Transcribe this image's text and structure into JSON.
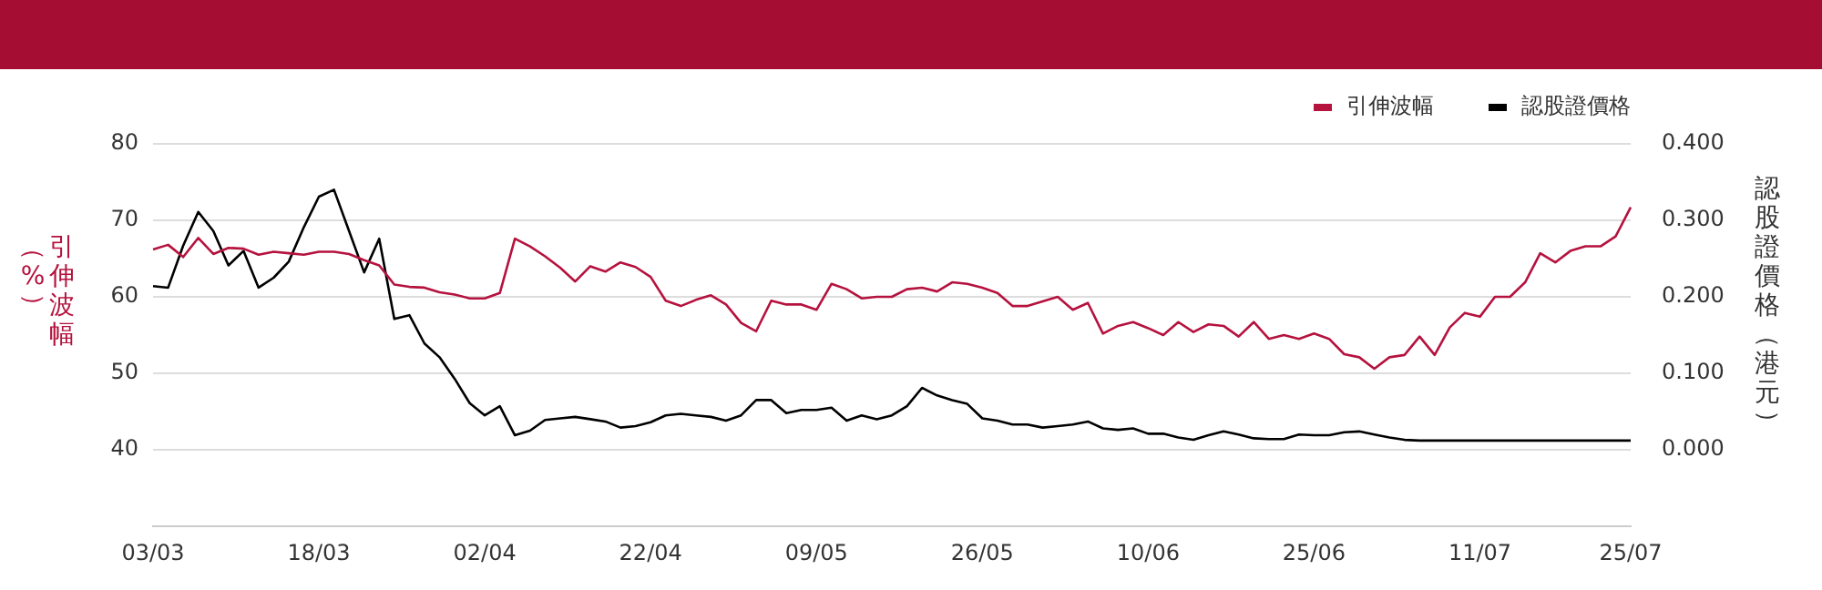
{
  "chart_data": {
    "type": "line",
    "categories": [
      "03/03",
      null,
      null,
      null,
      null,
      null,
      null,
      null,
      null,
      null,
      null,
      "18/03",
      null,
      null,
      null,
      null,
      null,
      null,
      null,
      null,
      null,
      null,
      "02/04",
      null,
      null,
      null,
      null,
      null,
      null,
      null,
      null,
      null,
      null,
      "22/04",
      null,
      null,
      null,
      null,
      null,
      null,
      null,
      null,
      null,
      null,
      "09/05",
      null,
      null,
      null,
      null,
      null,
      null,
      null,
      null,
      null,
      null,
      "26/05",
      null,
      null,
      null,
      null,
      null,
      null,
      null,
      null,
      null,
      null,
      "10/06",
      null,
      null,
      null,
      null,
      null,
      null,
      null,
      null,
      null,
      null,
      "25/06",
      null,
      null,
      null,
      null,
      null,
      null,
      null,
      null,
      null,
      null,
      "11/07",
      null,
      null,
      null,
      null,
      null,
      null,
      null,
      null,
      null,
      "25/07"
    ],
    "series": [
      {
        "name": "引伸波幅",
        "color": "#b5123e",
        "values": [
          66.2,
          66.8,
          65.2,
          67.7,
          65.6,
          66.4,
          66.3,
          65.5,
          65.9,
          65.7,
          65.5,
          65.9,
          65.9,
          65.6,
          64.8,
          64.1,
          61.6,
          61.3,
          61.2,
          60.6,
          60.3,
          59.8,
          59.8,
          60.5,
          67.6,
          66.6,
          65.3,
          63.8,
          62.0,
          64.0,
          63.3,
          64.5,
          63.9,
          62.6,
          59.5,
          58.8,
          59.6,
          60.2,
          59.0,
          56.6,
          55.5,
          59.5,
          59.0,
          59.0,
          58.3,
          61.7,
          61.0,
          59.8,
          60.0,
          60.0,
          61.0,
          61.2,
          60.7,
          61.9,
          61.7,
          61.2,
          60.5,
          58.8,
          58.8,
          59.4,
          60.0,
          58.3,
          59.2,
          55.2,
          56.2,
          56.7,
          55.9,
          55.0,
          56.7,
          55.4,
          56.4,
          56.2,
          54.8,
          56.7,
          54.5,
          55.0,
          54.5,
          55.2,
          54.5,
          52.5,
          52.1,
          50.6,
          52.1,
          52.4,
          54.8,
          52.4,
          56.0,
          57.9,
          57.4,
          60.0,
          60.0,
          61.9,
          65.7,
          64.5,
          66.0,
          66.6,
          66.6,
          67.9,
          71.7
        ]
      },
      {
        "name": "認股證價格",
        "color": "#000000",
        "axis": "y2",
        "values": [
          0.214,
          0.212,
          0.267,
          0.311,
          0.286,
          0.241,
          0.26,
          0.212,
          0.225,
          0.246,
          0.291,
          0.331,
          0.34,
          0.286,
          0.232,
          0.276,
          0.171,
          0.176,
          0.139,
          0.121,
          0.093,
          0.061,
          0.045,
          0.057,
          0.019,
          0.025,
          0.039,
          0.041,
          0.043,
          0.04,
          0.037,
          0.029,
          0.031,
          0.036,
          0.045,
          0.047,
          0.045,
          0.043,
          0.038,
          0.045,
          0.065,
          0.065,
          0.048,
          0.052,
          0.052,
          0.055,
          0.038,
          0.045,
          0.04,
          0.045,
          0.057,
          0.081,
          0.071,
          0.065,
          0.06,
          0.041,
          0.038,
          0.033,
          0.033,
          0.029,
          0.031,
          0.033,
          0.037,
          0.028,
          0.026,
          0.028,
          0.021,
          0.021,
          0.016,
          0.013,
          0.019,
          0.024,
          0.02,
          0.015,
          0.014,
          0.014,
          0.02,
          0.019,
          0.019,
          0.023,
          0.024,
          0.02,
          0.016,
          0.013,
          0.012,
          0.012,
          0.012,
          0.012,
          0.012,
          0.012,
          0.012,
          0.012,
          0.012,
          0.012,
          0.012,
          0.012,
          0.012,
          0.012,
          0.012
        ]
      }
    ],
    "ylabel": "引伸波幅（%）",
    "y2label": "認股證價格（港元）",
    "ylim": [
      30,
      80
    ],
    "yticks": [
      40,
      50,
      60,
      70,
      80
    ],
    "y2lim": [
      -0.1,
      0.4
    ],
    "y2ticks": [
      {
        "value": 0,
        "label": "0.000"
      },
      {
        "value": 0.1,
        "label": "0.100"
      },
      {
        "value": 0.2,
        "label": "0.200"
      },
      {
        "value": 0.3,
        "label": "0.300"
      },
      {
        "value": 0.4,
        "label": "0.400"
      }
    ],
    "grid": "y",
    "legend": "top right",
    "marker": "none",
    "line_style": "solid"
  }
}
